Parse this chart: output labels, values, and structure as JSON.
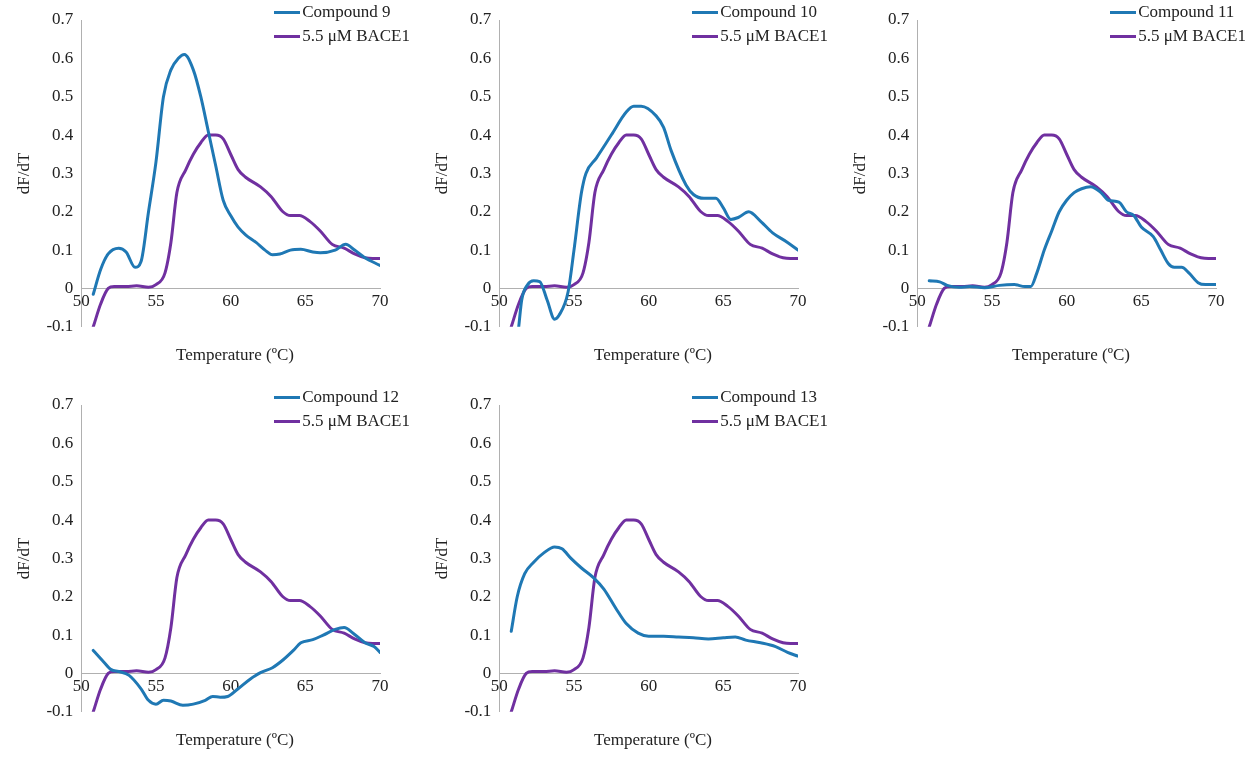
{
  "chart_data": [
    {
      "type": "line",
      "xlabel": "Temperature (ºC)",
      "ylabel": "dF/dT",
      "xlim": [
        50,
        70
      ],
      "xticks": [
        50,
        55,
        60,
        65,
        70
      ],
      "ylim": [
        -0.1,
        0.7
      ],
      "yticks": [
        -0.1,
        0,
        0.1,
        0.2,
        0.3,
        0.4,
        0.5,
        0.6,
        0.7
      ],
      "legend": "top right",
      "marker": "none",
      "series": [
        {
          "name": "Compound 9",
          "color": "#1f78b4",
          "x": [
            50.8,
            51.3,
            51.8,
            52.5,
            53,
            53.6,
            54,
            54.5,
            55,
            55.5,
            56,
            56.5,
            56.9,
            57.5,
            58,
            58.5,
            59,
            59.5,
            60,
            60.5,
            61,
            61.7,
            62.3,
            62.8,
            63.3,
            64,
            64.7,
            65.5,
            66,
            67,
            67.7,
            68.3,
            69,
            70
          ],
          "values": [
            -0.015,
            0.05,
            0.09,
            0.105,
            0.095,
            0.055,
            0.07,
            0.2,
            0.33,
            0.5,
            0.57,
            0.6,
            0.61,
            0.57,
            0.5,
            0.41,
            0.32,
            0.23,
            0.19,
            0.16,
            0.14,
            0.12,
            0.1,
            0.088,
            0.09,
            0.1,
            0.102,
            0.095,
            0.093,
            0.1,
            0.115,
            0.1,
            0.08,
            0.06
          ]
        },
        {
          "name": "5.5 μM BACE1",
          "color": "#7030a0",
          "x": [
            50.8,
            51.3,
            51.8,
            52.2,
            53,
            53.7,
            54.5,
            55,
            55.6,
            56,
            56.4,
            57,
            57.5,
            58,
            58.5,
            59,
            59.5,
            60,
            60.5,
            61,
            62,
            62.7,
            63.5,
            64,
            64.6,
            65.3,
            66,
            66.8,
            67.6,
            68.3,
            69,
            69.5,
            70
          ],
          "values": [
            -0.1,
            -0.04,
            0,
            0.005,
            0.005,
            0.007,
            0.003,
            0.01,
            0.04,
            0.12,
            0.25,
            0.31,
            0.35,
            0.38,
            0.4,
            0.4,
            0.39,
            0.35,
            0.31,
            0.29,
            0.265,
            0.24,
            0.2,
            0.19,
            0.19,
            0.175,
            0.15,
            0.115,
            0.105,
            0.09,
            0.08,
            0.078,
            0.078
          ]
        }
      ]
    },
    {
      "type": "line",
      "xlabel": "Temperature (ºC)",
      "ylabel": "dF/dT",
      "xlim": [
        50,
        70
      ],
      "xticks": [
        50,
        55,
        60,
        65,
        70
      ],
      "ylim": [
        -0.1,
        0.7
      ],
      "yticks": [
        -0.1,
        0,
        0.1,
        0.2,
        0.3,
        0.4,
        0.5,
        0.6,
        0.7
      ],
      "legend": "top right",
      "marker": "none",
      "series": [
        {
          "name": "Compound 10",
          "color": "#1f78b4",
          "x": [
            51.3,
            51.5,
            51.9,
            52.3,
            52.7,
            53.2,
            53.7,
            54,
            54.6,
            55,
            55.5,
            55.8,
            56.5,
            57.5,
            58.5,
            59,
            59.5,
            60.5,
            61,
            61.5,
            62.5,
            63,
            63.7,
            64.5,
            65,
            65.5,
            66,
            66.7,
            67.5,
            68.3,
            69.3,
            70
          ],
          "values": [
            -0.1,
            -0.03,
            0.01,
            0.02,
            0.018,
            -0.03,
            -0.08,
            -0.07,
            -0.01,
            0.1,
            0.25,
            0.3,
            0.34,
            0.4,
            0.46,
            0.475,
            0.475,
            0.45,
            0.42,
            0.36,
            0.27,
            0.245,
            0.235,
            0.235,
            0.21,
            0.18,
            0.185,
            0.2,
            0.175,
            0.145,
            0.12,
            0.1
          ]
        },
        {
          "name": "5.5 μM BACE1",
          "color": "#7030a0",
          "x": [
            50.8,
            51.3,
            51.8,
            52.2,
            53,
            53.7,
            54.5,
            55,
            55.6,
            56,
            56.4,
            57,
            57.5,
            58,
            58.5,
            59,
            59.5,
            60,
            60.5,
            61,
            62,
            62.7,
            63.5,
            64,
            64.6,
            65.3,
            66,
            66.8,
            67.6,
            68.3,
            69,
            69.5,
            70
          ],
          "values": [
            -0.1,
            -0.04,
            0,
            0.005,
            0.005,
            0.007,
            0.003,
            0.01,
            0.04,
            0.12,
            0.25,
            0.31,
            0.35,
            0.38,
            0.4,
            0.4,
            0.39,
            0.35,
            0.31,
            0.29,
            0.265,
            0.24,
            0.2,
            0.19,
            0.19,
            0.175,
            0.15,
            0.115,
            0.105,
            0.09,
            0.08,
            0.078,
            0.078
          ]
        }
      ]
    },
    {
      "type": "line",
      "xlabel": "Temperature (ºC)",
      "ylabel": "dF/dT",
      "xlim": [
        50,
        70
      ],
      "xticks": [
        50,
        55,
        60,
        65,
        70
      ],
      "ylim": [
        -0.1,
        0.7
      ],
      "yticks": [
        -0.1,
        0,
        0.1,
        0.2,
        0.3,
        0.4,
        0.5,
        0.6,
        0.7
      ],
      "legend": "top right",
      "marker": "none",
      "series": [
        {
          "name": "Compound 11",
          "color": "#1f78b4",
          "x": [
            50.8,
            51.5,
            52,
            52.8,
            53.5,
            54.5,
            55.5,
            56.5,
            57.2,
            57.6,
            58,
            58.5,
            59,
            59.5,
            60,
            60.5,
            61,
            61.6,
            62.3,
            62.8,
            63.5,
            64,
            64.5,
            65,
            65.8,
            66.3,
            66.8,
            67.2,
            67.7,
            68.2,
            68.8,
            69.3,
            70
          ],
          "values": [
            0.02,
            0.017,
            0.008,
            0.003,
            0.005,
            0.002,
            0.008,
            0.01,
            0.005,
            0.005,
            0.04,
            0.1,
            0.15,
            0.2,
            0.23,
            0.25,
            0.26,
            0.265,
            0.25,
            0.23,
            0.225,
            0.2,
            0.19,
            0.16,
            0.135,
            0.1,
            0.065,
            0.055,
            0.055,
            0.04,
            0.015,
            0.01,
            0.01
          ]
        },
        {
          "name": "5.5 μM BACE1",
          "color": "#7030a0",
          "x": [
            50.8,
            51.3,
            51.8,
            52.2,
            53,
            53.7,
            54.5,
            55,
            55.6,
            56,
            56.4,
            57,
            57.5,
            58,
            58.5,
            59,
            59.5,
            60,
            60.5,
            61,
            62,
            62.7,
            63.5,
            64,
            64.6,
            65.3,
            66,
            66.8,
            67.6,
            68.3,
            69,
            69.5,
            70
          ],
          "values": [
            -0.1,
            -0.04,
            0,
            0.005,
            0.005,
            0.007,
            0.003,
            0.01,
            0.04,
            0.12,
            0.25,
            0.31,
            0.35,
            0.38,
            0.4,
            0.4,
            0.39,
            0.35,
            0.31,
            0.29,
            0.265,
            0.24,
            0.2,
            0.19,
            0.19,
            0.175,
            0.15,
            0.115,
            0.105,
            0.09,
            0.08,
            0.078,
            0.078
          ]
        }
      ]
    },
    {
      "type": "line",
      "xlabel": "Temperature (ºC)",
      "ylabel": "dF/dT",
      "xlim": [
        50,
        70
      ],
      "xticks": [
        50,
        55,
        60,
        65,
        70
      ],
      "ylim": [
        -0.1,
        0.7
      ],
      "yticks": [
        -0.1,
        0,
        0.1,
        0.2,
        0.3,
        0.4,
        0.5,
        0.6,
        0.7
      ],
      "legend": "top right",
      "marker": "none",
      "series": [
        {
          "name": "Compound 12",
          "color": "#1f78b4",
          "x": [
            50.8,
            51.5,
            52,
            52.5,
            53.2,
            54,
            54.5,
            55,
            55.5,
            56,
            56.8,
            57.5,
            58.3,
            58.8,
            59.3,
            59.8,
            60.5,
            61.3,
            62,
            62.8,
            63.5,
            64.2,
            64.7,
            65.5,
            66.2,
            67,
            67.6,
            68.2,
            69,
            69.6,
            70
          ],
          "values": [
            0.06,
            0.03,
            0.01,
            0.005,
            -0.005,
            -0.04,
            -0.07,
            -0.08,
            -0.07,
            -0.072,
            -0.083,
            -0.08,
            -0.07,
            -0.06,
            -0.062,
            -0.06,
            -0.04,
            -0.015,
            0.002,
            0.015,
            0.035,
            0.06,
            0.08,
            0.088,
            0.1,
            0.115,
            0.12,
            0.105,
            0.08,
            0.07,
            0.055
          ]
        },
        {
          "name": "5.5 μM BACE1",
          "color": "#7030a0",
          "x": [
            50.8,
            51.3,
            51.8,
            52.2,
            53,
            53.7,
            54.5,
            55,
            55.6,
            56,
            56.4,
            57,
            57.5,
            58,
            58.5,
            59,
            59.5,
            60,
            60.5,
            61,
            62,
            62.7,
            63.5,
            64,
            64.6,
            65.3,
            66,
            66.8,
            67.6,
            68.3,
            69,
            69.5,
            70
          ],
          "values": [
            -0.1,
            -0.04,
            0,
            0.005,
            0.005,
            0.007,
            0.003,
            0.01,
            0.04,
            0.12,
            0.25,
            0.31,
            0.35,
            0.38,
            0.4,
            0.4,
            0.39,
            0.35,
            0.31,
            0.29,
            0.265,
            0.24,
            0.2,
            0.19,
            0.19,
            0.175,
            0.15,
            0.115,
            0.105,
            0.09,
            0.08,
            0.078,
            0.078
          ]
        }
      ]
    },
    {
      "type": "line",
      "xlabel": "Temperature (ºC)",
      "ylabel": "dF/dT",
      "xlim": [
        50,
        70
      ],
      "xticks": [
        50,
        55,
        60,
        65,
        70
      ],
      "ylim": [
        -0.1,
        0.7
      ],
      "yticks": [
        -0.1,
        0,
        0.1,
        0.2,
        0.3,
        0.4,
        0.5,
        0.6,
        0.7
      ],
      "legend": "top right",
      "marker": "none",
      "series": [
        {
          "name": "Compound 13",
          "color": "#1f78b4",
          "x": [
            50.8,
            51.2,
            51.7,
            52.3,
            53,
            53.7,
            54.2,
            54.8,
            55.5,
            56.3,
            57,
            57.8,
            58.5,
            59.3,
            60,
            61,
            62,
            63,
            64,
            65,
            65.8,
            66.5,
            67.5,
            68.5,
            69.3,
            70
          ],
          "values": [
            0.11,
            0.2,
            0.26,
            0.29,
            0.315,
            0.33,
            0.325,
            0.3,
            0.275,
            0.25,
            0.22,
            0.17,
            0.13,
            0.105,
            0.097,
            0.097,
            0.095,
            0.093,
            0.09,
            0.093,
            0.095,
            0.087,
            0.08,
            0.07,
            0.055,
            0.045
          ]
        },
        {
          "name": "5.5 μM BACE1",
          "color": "#7030a0",
          "x": [
            50.8,
            51.3,
            51.8,
            52.2,
            53,
            53.7,
            54.5,
            55,
            55.6,
            56,
            56.4,
            57,
            57.5,
            58,
            58.5,
            59,
            59.5,
            60,
            60.5,
            61,
            62,
            62.7,
            63.5,
            64,
            64.6,
            65.3,
            66,
            66.8,
            67.6,
            68.3,
            69,
            69.5,
            70
          ],
          "values": [
            -0.1,
            -0.04,
            0,
            0.005,
            0.005,
            0.007,
            0.003,
            0.01,
            0.04,
            0.12,
            0.25,
            0.31,
            0.35,
            0.38,
            0.4,
            0.4,
            0.39,
            0.35,
            0.31,
            0.29,
            0.265,
            0.24,
            0.2,
            0.19,
            0.19,
            0.175,
            0.15,
            0.115,
            0.105,
            0.09,
            0.08,
            0.078,
            0.078
          ]
        }
      ]
    }
  ]
}
